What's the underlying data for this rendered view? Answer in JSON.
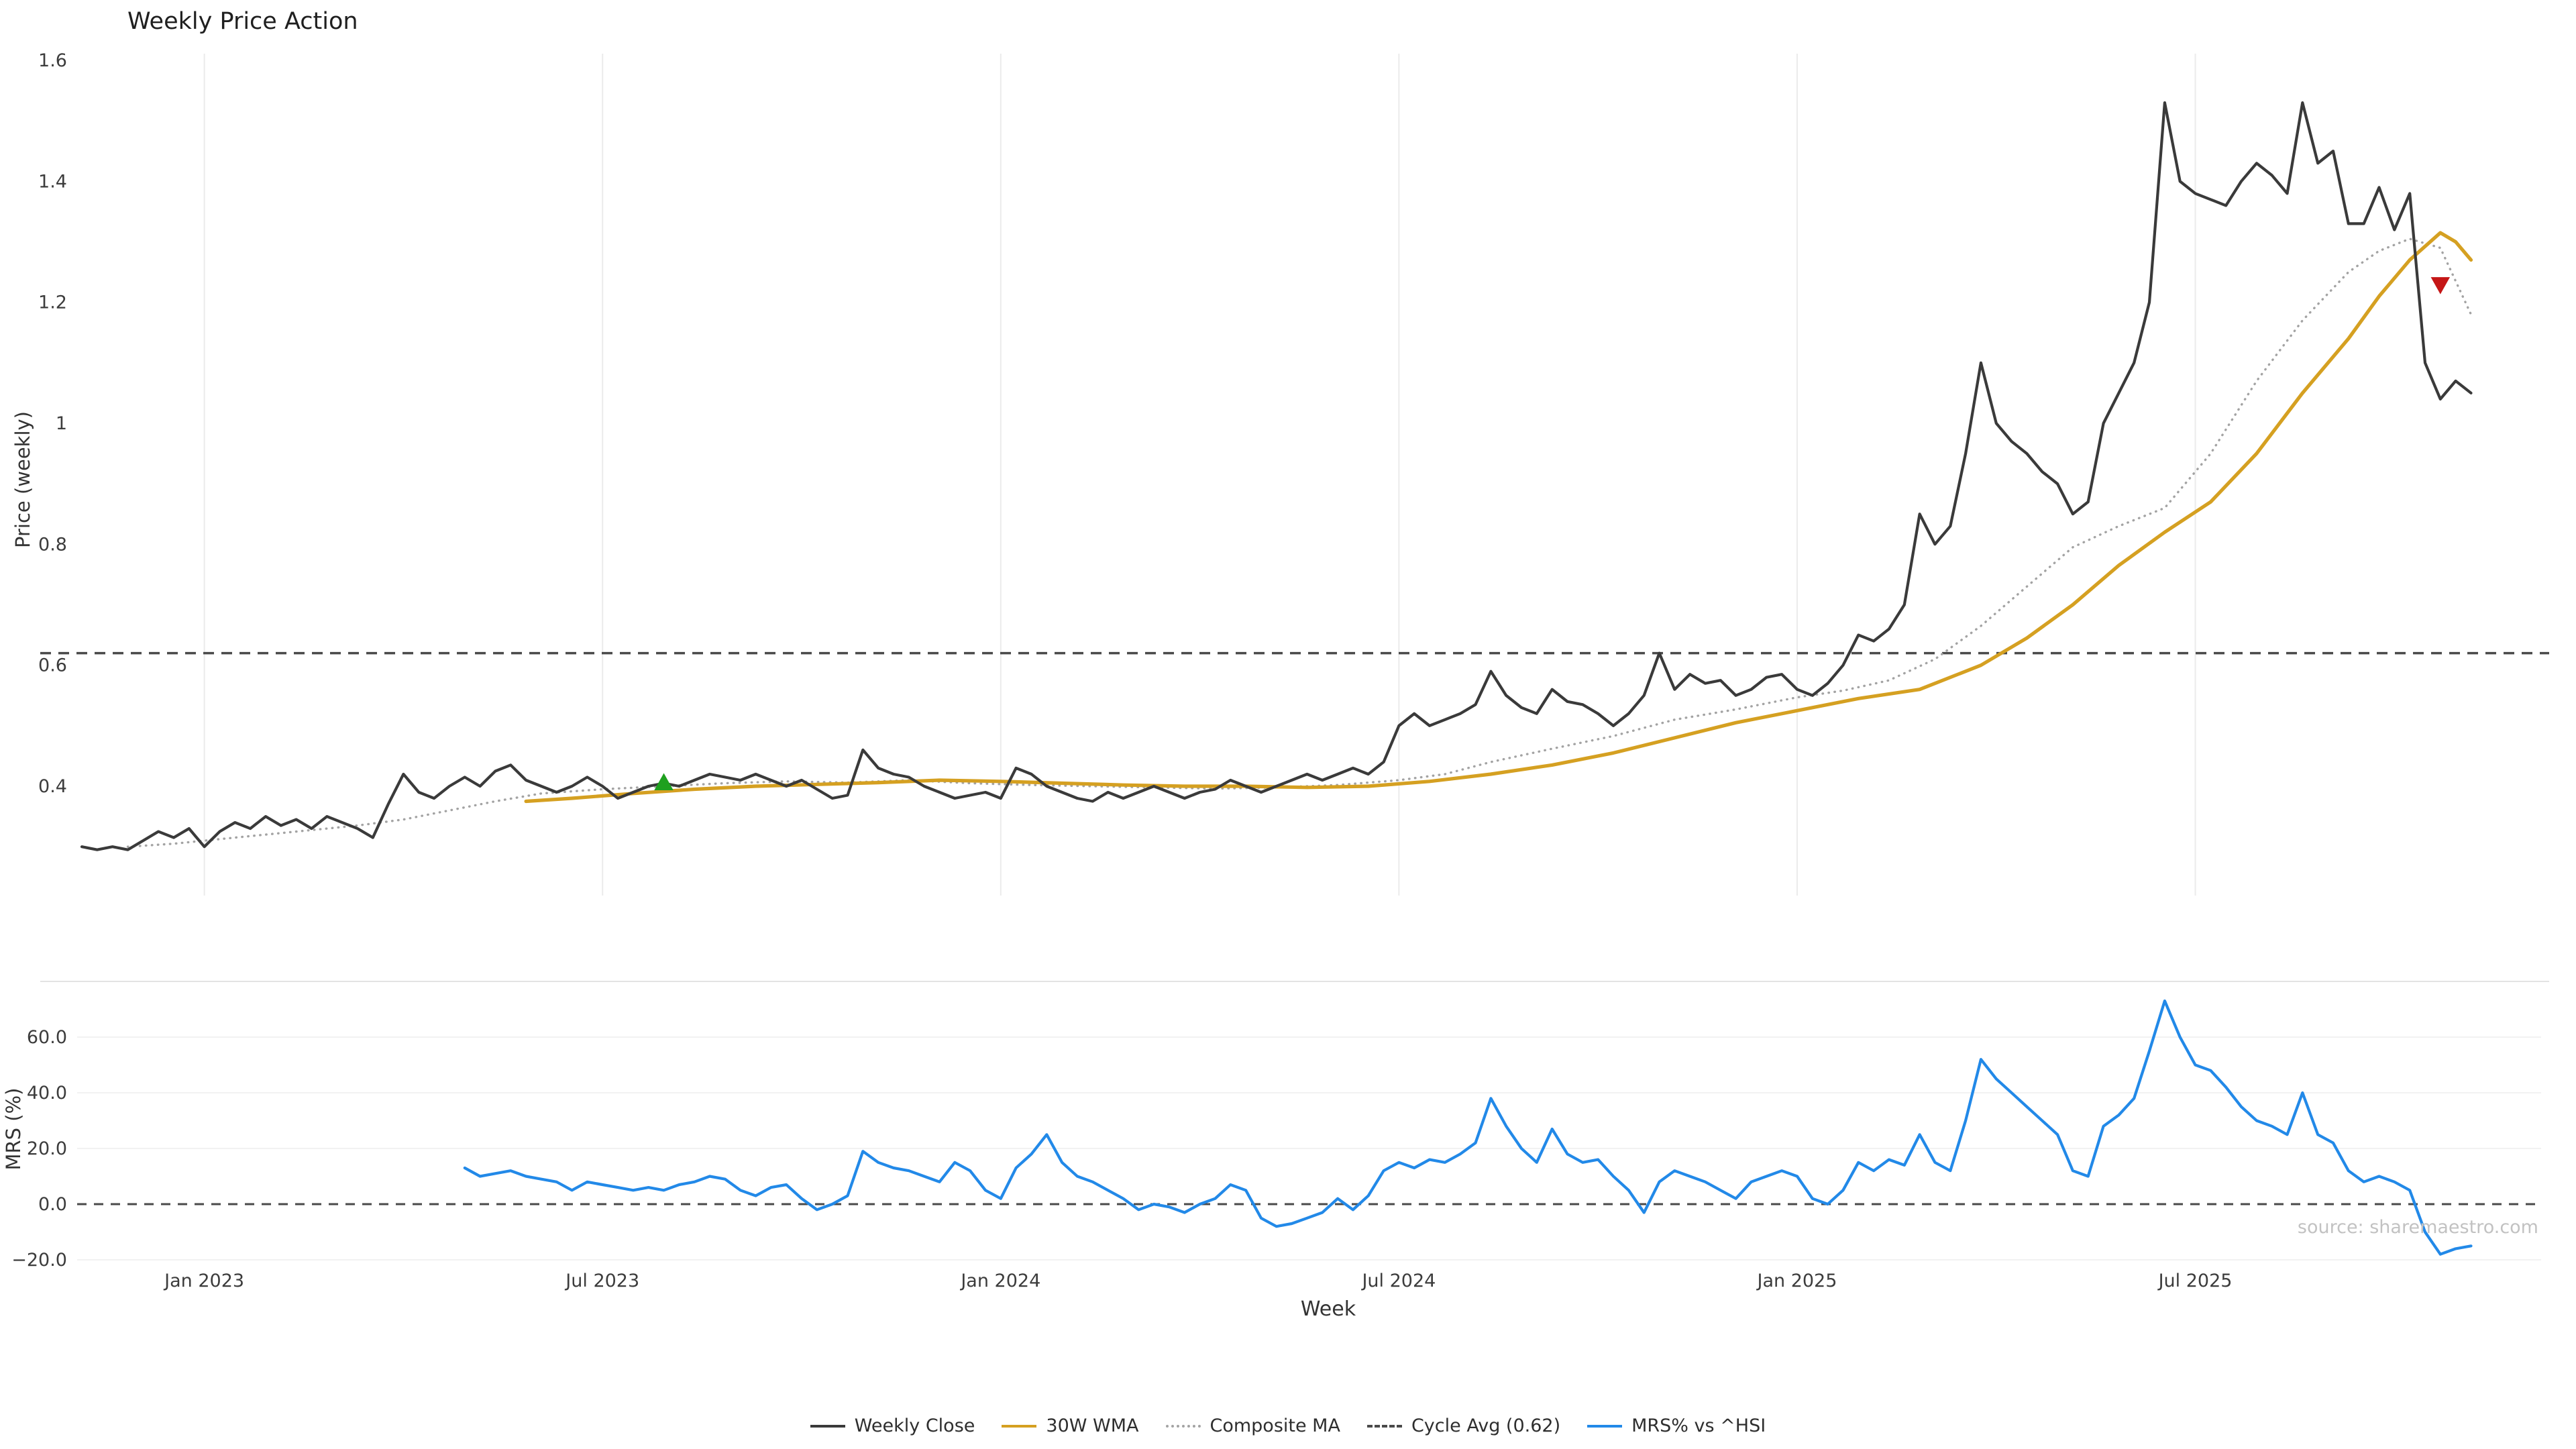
{
  "page": {
    "title": "Weekly Price Action",
    "watermark": "source: sharemaestro.com"
  },
  "legend": {
    "items": [
      {
        "label": "Weekly Close",
        "color": "#3a3a3a",
        "style": "solid"
      },
      {
        "label": "30W WMA",
        "color": "#d5a021",
        "style": "solid"
      },
      {
        "label": "Composite MA",
        "color": "#a3a3a3",
        "style": "dotted"
      },
      {
        "label": "Cycle Avg (0.62)",
        "color": "#4a4a4a",
        "style": "dashed"
      },
      {
        "label": "MRS% vs ^HSI",
        "color": "#2289e8",
        "style": "solid"
      }
    ]
  },
  "chart_data": [
    {
      "type": "line",
      "title": "Weekly Price Action",
      "ylabel": "Price (weekly)",
      "ylim": [
        0.2,
        1.62
      ],
      "grid": "vertical-only",
      "yticks": [
        0.4,
        0.6,
        0.8,
        1,
        1.2,
        1.4,
        1.6
      ],
      "ytick_labels": [
        "0.4",
        "0.6",
        "0.8",
        "1",
        "1.2",
        "1.4",
        "1.6"
      ],
      "x_unit": "week-index",
      "x_tick_weeks": [
        8,
        34,
        60,
        86,
        112,
        138
      ],
      "x_tick_labels": [
        "Jan 2023",
        "Jul 2023",
        "Jan 2024",
        "Jul 2024",
        "Jan 2025",
        "Jul 2025"
      ],
      "cycle_avg": 0.62,
      "series": [
        {
          "name": "Weekly Close",
          "color": "#3a3a3a",
          "style": "solid",
          "x_start": 0,
          "values": [
            0.3,
            0.295,
            0.3,
            0.295,
            0.31,
            0.325,
            0.315,
            0.33,
            0.3,
            0.325,
            0.34,
            0.33,
            0.35,
            0.335,
            0.345,
            0.33,
            0.35,
            0.34,
            0.33,
            0.315,
            0.37,
            0.42,
            0.39,
            0.38,
            0.4,
            0.415,
            0.4,
            0.425,
            0.435,
            0.41,
            0.4,
            0.39,
            0.4,
            0.415,
            0.4,
            0.38,
            0.39,
            0.4,
            0.405,
            0.4,
            0.41,
            0.42,
            0.415,
            0.41,
            0.42,
            0.41,
            0.4,
            0.41,
            0.395,
            0.38,
            0.385,
            0.46,
            0.43,
            0.42,
            0.415,
            0.4,
            0.39,
            0.38,
            0.385,
            0.39,
            0.38,
            0.43,
            0.42,
            0.4,
            0.39,
            0.38,
            0.375,
            0.39,
            0.38,
            0.39,
            0.4,
            0.39,
            0.38,
            0.39,
            0.395,
            0.41,
            0.4,
            0.39,
            0.4,
            0.41,
            0.42,
            0.41,
            0.42,
            0.43,
            0.42,
            0.44,
            0.5,
            0.52,
            0.5,
            0.51,
            0.52,
            0.535,
            0.59,
            0.55,
            0.53,
            0.52,
            0.56,
            0.54,
            0.535,
            0.52,
            0.5,
            0.52,
            0.55,
            0.62,
            0.56,
            0.585,
            0.57,
            0.575,
            0.55,
            0.56,
            0.58,
            0.585,
            0.56,
            0.55,
            0.57,
            0.6,
            0.65,
            0.64,
            0.66,
            0.7,
            0.85,
            0.8,
            0.83,
            0.95,
            1.1,
            1.0,
            0.97,
            0.95,
            0.92,
            0.9,
            0.85,
            0.87,
            1.0,
            1.05,
            1.1,
            1.2,
            1.53,
            1.4,
            1.38,
            1.37,
            1.36,
            1.4,
            1.43,
            1.41,
            1.38,
            1.53,
            1.43,
            1.45,
            1.33,
            1.33,
            1.39,
            1.32,
            1.38,
            1.1,
            1.04,
            1.07,
            1.05
          ]
        },
        {
          "name": "30W WMA",
          "color": "#d5a021",
          "style": "solid",
          "x": [
            29,
            32,
            36,
            40,
            44,
            48,
            52,
            56,
            60,
            64,
            68,
            72,
            76,
            80,
            84,
            88,
            92,
            96,
            100,
            104,
            108,
            112,
            116,
            120,
            124,
            127,
            130,
            133,
            136,
            139,
            142,
            145,
            148,
            150,
            152,
            154,
            155,
            156
          ],
          "values": [
            0.375,
            0.38,
            0.388,
            0.395,
            0.4,
            0.403,
            0.406,
            0.41,
            0.408,
            0.405,
            0.402,
            0.4,
            0.4,
            0.398,
            0.4,
            0.408,
            0.42,
            0.435,
            0.455,
            0.48,
            0.505,
            0.525,
            0.545,
            0.56,
            0.6,
            0.645,
            0.7,
            0.765,
            0.82,
            0.87,
            0.95,
            1.05,
            1.14,
            1.21,
            1.27,
            1.315,
            1.3,
            1.27
          ]
        },
        {
          "name": "Composite MA",
          "color": "#a3a3a3",
          "style": "dotted",
          "x": [
            3,
            6,
            10,
            14,
            18,
            21,
            24,
            27,
            30,
            34,
            38,
            42,
            46,
            50,
            54,
            58,
            62,
            66,
            70,
            74,
            78,
            82,
            86,
            89,
            92,
            96,
            100,
            104,
            108,
            112,
            115,
            118,
            121,
            124,
            127,
            130,
            133,
            136,
            139,
            142,
            145,
            148,
            150,
            152,
            154,
            156
          ],
          "values": [
            0.3,
            0.305,
            0.315,
            0.325,
            0.335,
            0.345,
            0.36,
            0.375,
            0.388,
            0.395,
            0.4,
            0.405,
            0.408,
            0.406,
            0.41,
            0.405,
            0.402,
            0.4,
            0.398,
            0.396,
            0.398,
            0.402,
            0.41,
            0.42,
            0.44,
            0.462,
            0.483,
            0.51,
            0.527,
            0.547,
            0.558,
            0.575,
            0.61,
            0.665,
            0.73,
            0.795,
            0.83,
            0.86,
            0.95,
            1.07,
            1.17,
            1.25,
            1.285,
            1.305,
            1.29,
            1.18
          ]
        }
      ],
      "markers": [
        {
          "signal": "buy",
          "shape": "triangle-up",
          "color": "#1fa01f",
          "week": 38,
          "value": 0.405
        },
        {
          "signal": "sell",
          "shape": "triangle-down",
          "color": "#c51616",
          "week": 154,
          "value": 1.23
        }
      ]
    },
    {
      "type": "line",
      "ylabel": "MRS (%)",
      "xlabel": "Week",
      "ylim": [
        -25,
        80
      ],
      "grid": "horizontal-only",
      "yticks": [
        -20,
        0,
        20,
        40,
        60
      ],
      "ytick_labels": [
        "−20.0",
        "0.0",
        "20.0",
        "40.0",
        "60.0"
      ],
      "zero_line": 0,
      "series": [
        {
          "name": "MRS% vs ^HSI",
          "color": "#2289e8",
          "style": "solid",
          "x_start": 25,
          "values": [
            13,
            10,
            11,
            12,
            10,
            9,
            8,
            5,
            8,
            7,
            6,
            5,
            6,
            5,
            7,
            8,
            10,
            9,
            5,
            3,
            6,
            7,
            2,
            -2,
            0,
            3,
            19,
            15,
            13,
            12,
            10,
            8,
            15,
            12,
            5,
            2,
            13,
            18,
            25,
            15,
            10,
            8,
            5,
            2,
            -2,
            0,
            -1,
            -3,
            0,
            2,
            7,
            5,
            -5,
            -8,
            -7,
            -5,
            -3,
            2,
            -2,
            3,
            12,
            15,
            13,
            16,
            15,
            18,
            22,
            38,
            28,
            20,
            15,
            27,
            18,
            15,
            16,
            10,
            5,
            -3,
            8,
            12,
            10,
            8,
            5,
            2,
            8,
            10,
            12,
            10,
            2,
            0,
            5,
            15,
            12,
            16,
            14,
            25,
            15,
            12,
            30,
            52,
            45,
            40,
            35,
            30,
            25,
            12,
            10,
            28,
            32,
            38,
            55,
            73,
            60,
            50,
            48,
            42,
            35,
            30,
            28,
            25,
            40,
            25,
            22,
            12,
            8,
            10,
            8,
            5,
            -10,
            -18,
            -16,
            -15
          ]
        }
      ]
    }
  ]
}
